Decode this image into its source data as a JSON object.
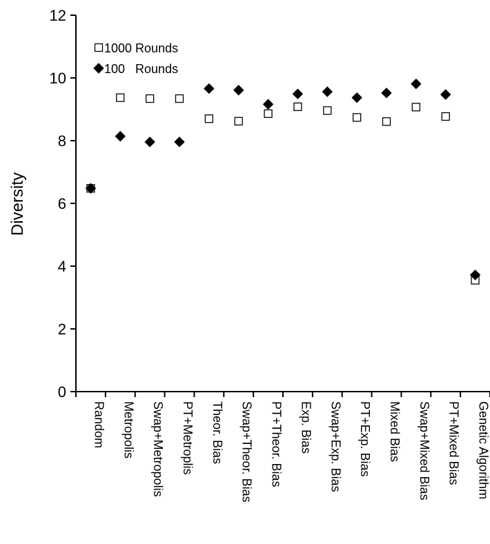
{
  "chart_data": {
    "type": "scatter",
    "xlabel": "",
    "ylabel": "Diversity",
    "ylim": [
      0,
      12
    ],
    "yticks": [
      "0",
      "2",
      "4",
      "6",
      "8",
      "10",
      "12"
    ],
    "grid": false,
    "legend_position": "top-left",
    "categories": [
      "Random",
      "Metropolis",
      "Swap+Metropolis",
      "PT+Metroplis",
      "Theor. Bias",
      "Swap+Theor. Bias",
      "PT+Theor. Bias",
      "Exp. Bias",
      "Swap+Exp. Bias",
      "PT+Exp. Bias",
      "Mixed Bias",
      "Swap+Mixed Bias",
      "PT+Mixed Bias",
      "Genetic Algorithm"
    ],
    "series": [
      {
        "name": "1000 Rounds",
        "marker": "open-square",
        "color": "#000000",
        "values": [
          6.48,
          9.37,
          9.34,
          9.34,
          8.7,
          8.62,
          8.86,
          9.08,
          8.96,
          8.74,
          8.61,
          9.07,
          8.77,
          3.55
        ]
      },
      {
        "name": "100   Rounds",
        "marker": "filled-diamond",
        "color": "#000000",
        "values": [
          6.48,
          8.14,
          7.96,
          7.96,
          9.66,
          9.61,
          9.16,
          9.49,
          9.56,
          9.37,
          9.52,
          9.81,
          9.47,
          3.72
        ]
      }
    ]
  }
}
